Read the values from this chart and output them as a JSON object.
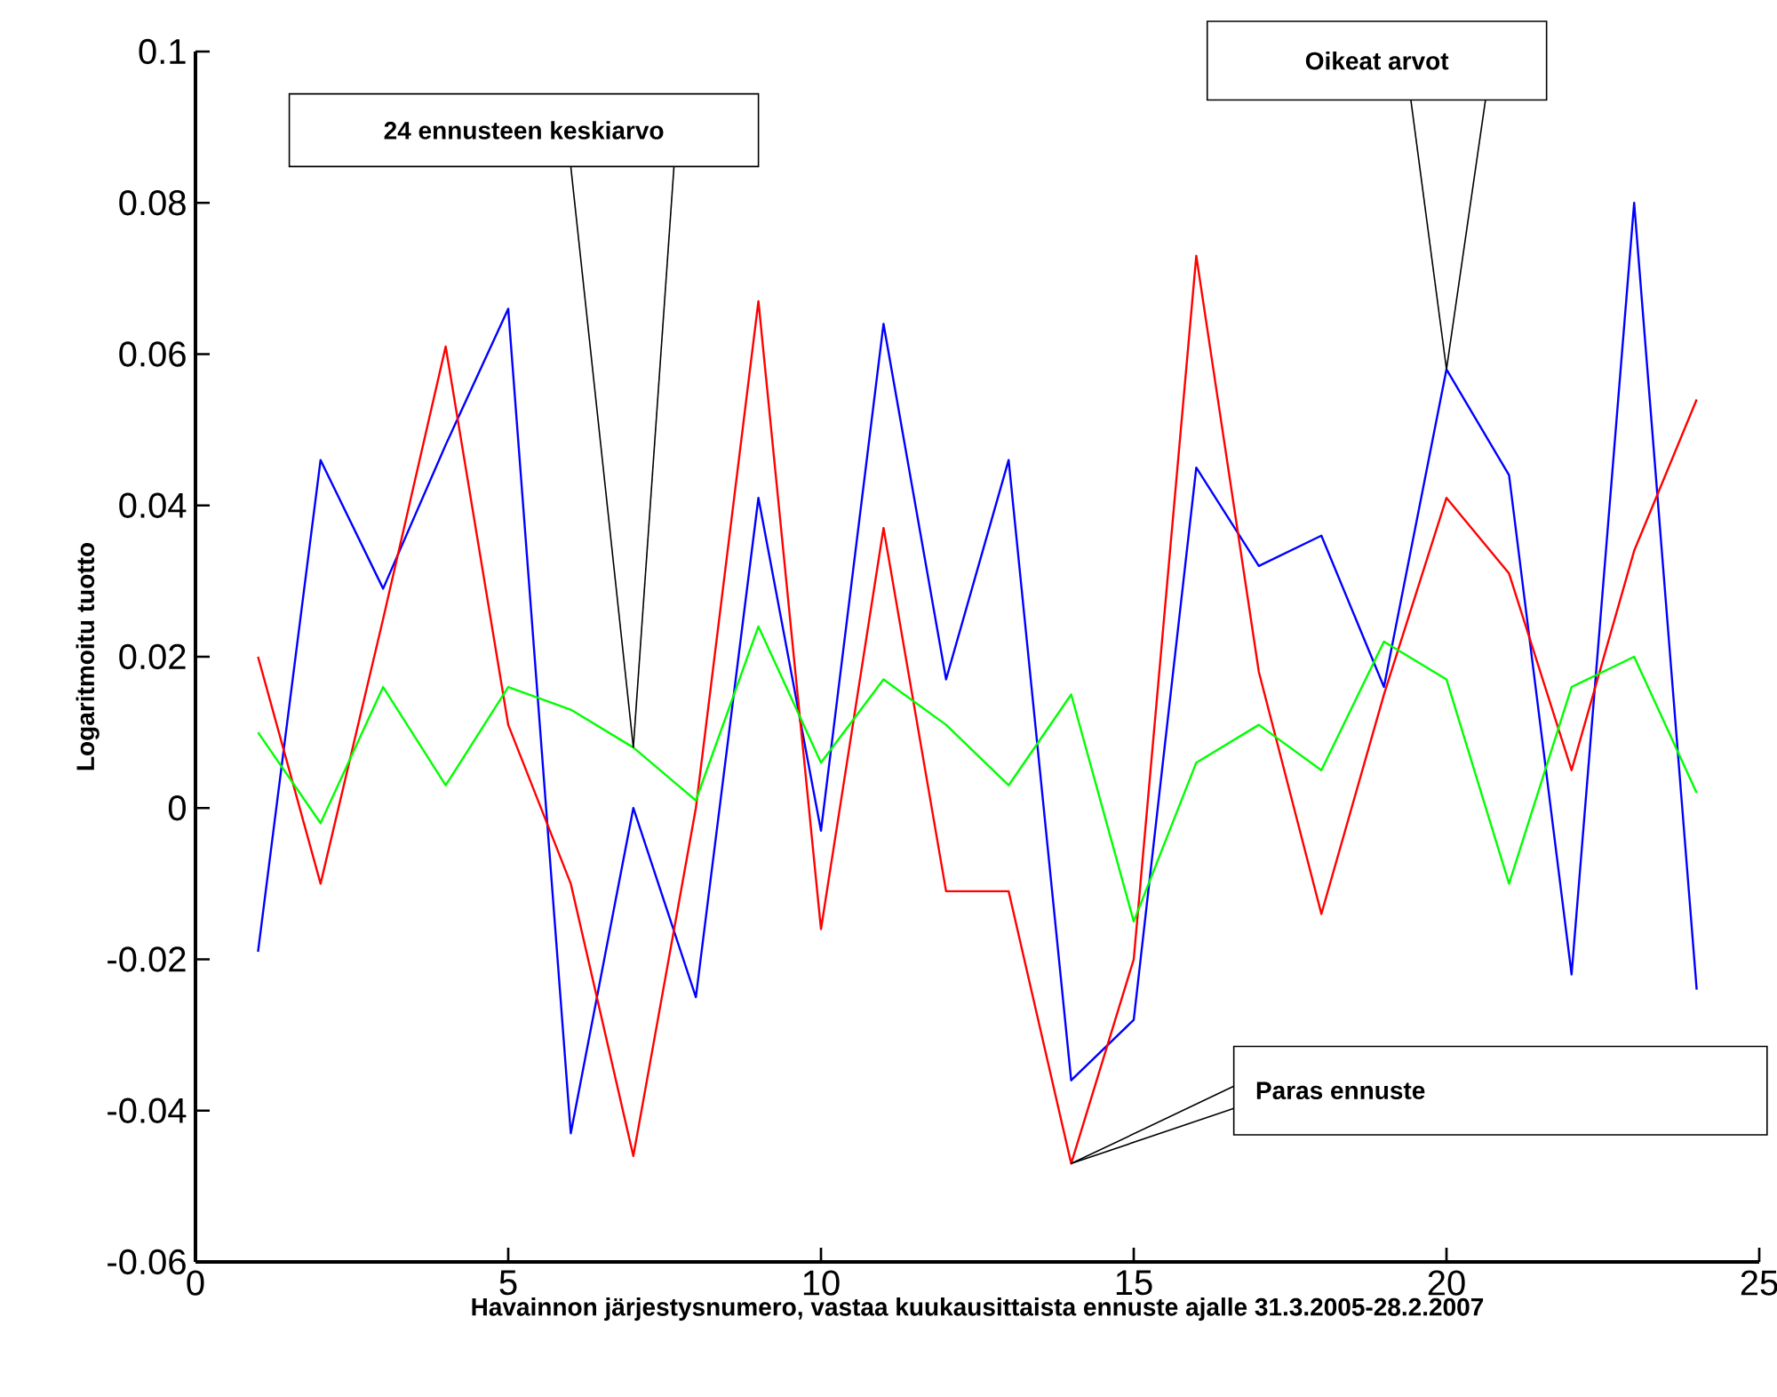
{
  "chart_data": {
    "type": "line",
    "xlabel": "Havainnon järjestysnumero, vastaa kuukausittaista ennuste ajalle 31.3.2005-28.2.2007",
    "ylabel": "Logaritmoitu  tuotto",
    "x": [
      1,
      2,
      3,
      4,
      5,
      6,
      7,
      8,
      9,
      10,
      11,
      12,
      13,
      14,
      15,
      16,
      17,
      18,
      19,
      20,
      21,
      22,
      23,
      24
    ],
    "series": [
      {
        "color": "#0000ff",
        "values": [
          -0.019,
          0.046,
          0.029,
          0.048,
          0.066,
          -0.043,
          0.0,
          -0.025,
          0.041,
          -0.003,
          0.064,
          0.017,
          0.046,
          -0.036,
          -0.028,
          0.045,
          0.032,
          0.036,
          0.016,
          0.058,
          0.044,
          -0.022,
          0.08,
          -0.024
        ]
      },
      {
        "color": "#ff0000",
        "values": [
          0.02,
          -0.01,
          0.025,
          0.061,
          0.011,
          -0.01,
          -0.046,
          0.0,
          0.067,
          -0.016,
          0.037,
          -0.011,
          -0.011,
          -0.047,
          -0.02,
          0.073,
          0.018,
          -0.014,
          0.015,
          0.041,
          0.031,
          0.005,
          0.034,
          0.054
        ]
      },
      {
        "color": "#00ff00",
        "values": [
          0.01,
          -0.002,
          0.016,
          0.003,
          0.016,
          0.013,
          0.008,
          0.001,
          0.024,
          0.006,
          0.017,
          0.011,
          0.003,
          0.015,
          -0.015,
          0.006,
          0.011,
          0.005,
          0.022,
          0.017,
          -0.01,
          0.016,
          0.02,
          0.002
        ]
      }
    ],
    "annotations": [
      {
        "text": "24 ennusteen keskiarvo",
        "x": 7,
        "y": 0.008
      },
      {
        "text": "Oikeat arvot",
        "x": 20,
        "y": 0.058
      },
      {
        "text": "Paras ennuste",
        "x": 14,
        "y": -0.047
      }
    ],
    "xlim": [
      0,
      25
    ],
    "ylim": [
      -0.06,
      0.1
    ],
    "xticks": [
      0,
      5,
      10,
      15,
      20,
      25
    ],
    "yticks": [
      -0.06,
      -0.04,
      -0.02,
      0,
      0.02,
      0.04,
      0.06,
      0.08,
      0.1
    ],
    "grid": false,
    "marker": "none",
    "line_style": "solid"
  }
}
